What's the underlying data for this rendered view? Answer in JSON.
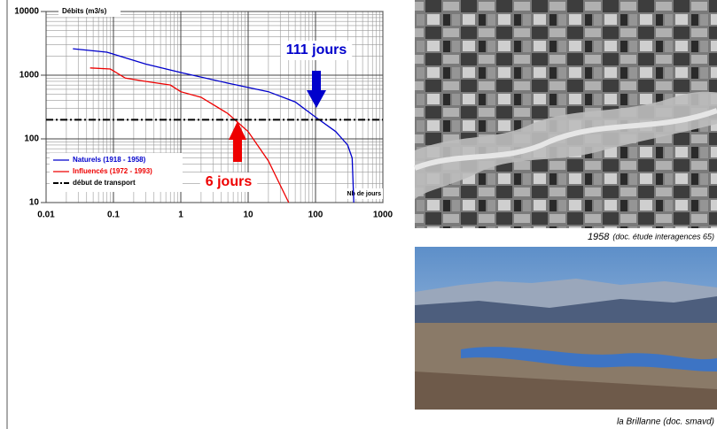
{
  "chart_data": {
    "type": "line",
    "x_label": "Nb de jours",
    "y_label": "Débits (m3/s)",
    "xlim": [
      0.01,
      1000
    ],
    "ylim": [
      10,
      10000
    ],
    "xticks": [
      0.01,
      0.1,
      1,
      10,
      100,
      1000
    ],
    "yticks": [
      10,
      100,
      1000,
      10000
    ],
    "log_x": true,
    "log_y": true,
    "grid": true,
    "legend": "lower-left",
    "series": [
      {
        "name": "Naturels  (1918 - 1958)",
        "color": "#0000cc",
        "x": [
          0.025,
          0.08,
          0.3,
          1,
          5,
          20,
          50,
          100,
          200,
          300,
          350,
          370
        ],
        "values": [
          2600,
          2300,
          1500,
          1100,
          750,
          550,
          380,
          220,
          130,
          80,
          50,
          10
        ]
      },
      {
        "name": "Influencés (1972 - 1993)",
        "color": "#ee0000",
        "x": [
          0.045,
          0.09,
          0.15,
          0.3,
          0.7,
          1,
          2,
          5,
          10,
          20,
          40
        ],
        "values": [
          1300,
          1250,
          900,
          800,
          700,
          550,
          450,
          250,
          130,
          45,
          10
        ]
      },
      {
        "name": "début de transport",
        "color": "#000000",
        "dash": "dash-dot",
        "x": [
          0.01,
          1000
        ],
        "values": [
          200,
          200
        ]
      }
    ],
    "annotations": [
      {
        "text": "111 jours",
        "color": "#0000cc"
      },
      {
        "text": "6 jours",
        "color": "#ee0000"
      }
    ]
  },
  "photos": [
    {
      "caption_year": "1958",
      "caption": "(doc. étude interagences 65)"
    },
    {
      "caption": "la Brillanne (doc. smavd)"
    }
  ]
}
